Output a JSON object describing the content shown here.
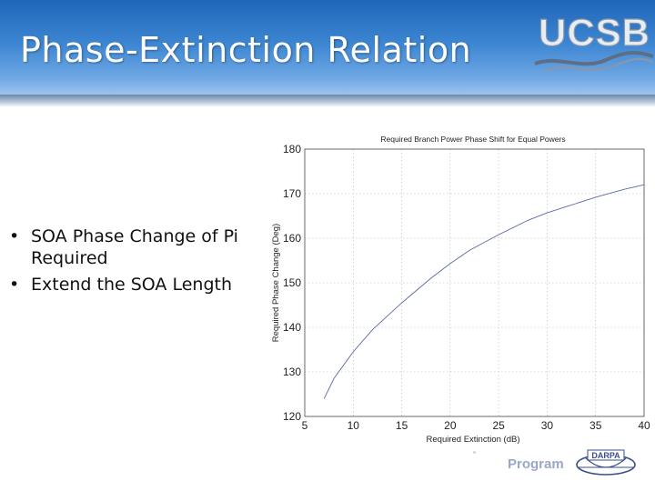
{
  "slide": {
    "title": "Phase-Extinction Relation",
    "logo_text": "UCSB",
    "bullets": [
      "SOA Phase Change of Pi Required",
      "Extend the SOA Length"
    ],
    "footer_program": "Program",
    "footer_logo_text": "DARPA"
  },
  "colors": {
    "header": "#2f78c8",
    "curve": "#5a6aa8",
    "grid": "#b8b8b8"
  },
  "chart_data": {
    "type": "line",
    "title": "Required Branch Power Phase Shift for Equal Powers",
    "xlabel": "Required Extinction (dB)",
    "ylabel": "Required Phase Change (Deg)",
    "xlim": [
      5,
      40
    ],
    "ylim": [
      120,
      180
    ],
    "xticks": [
      5,
      10,
      15,
      20,
      25,
      30,
      35,
      40
    ],
    "yticks": [
      120,
      130,
      140,
      150,
      160,
      170,
      180
    ],
    "grid": true,
    "series": [
      {
        "x": [
          7,
          8,
          10,
          12,
          15,
          18,
          20,
          22,
          25,
          28,
          30,
          32,
          35,
          38,
          40
        ],
        "y": [
          124,
          128.5,
          134.5,
          139.5,
          145.5,
          151,
          154.3,
          157.3,
          160.8,
          164,
          165.7,
          167.1,
          169.2,
          171,
          172
        ]
      }
    ]
  }
}
